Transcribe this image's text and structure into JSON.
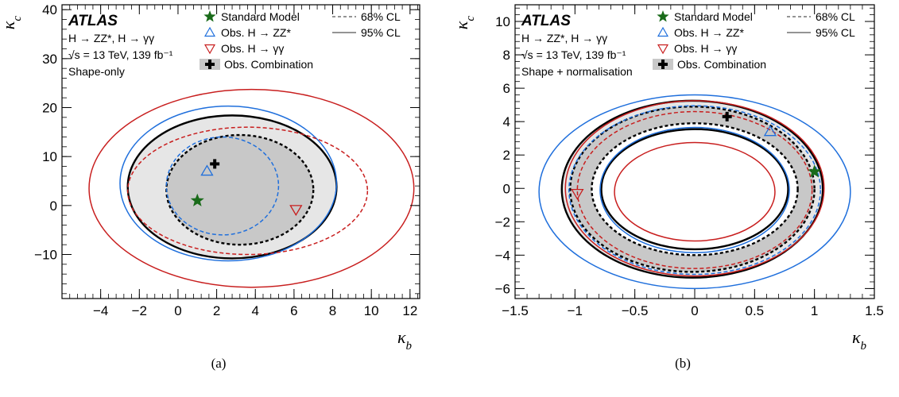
{
  "colors": {
    "combination": "#000000",
    "zz": "#1f6fdc",
    "gg": "#c81e1e",
    "sm": "#1a6b1a",
    "fill95": "#e6e6e6",
    "fill68": "#c8c8c8"
  },
  "chart_data": [
    {
      "type": "contour",
      "panel": "a",
      "caption": "(a)",
      "xlabel": "κ_b",
      "ylabel": "κ_c",
      "xlim": [
        -6,
        12.5
      ],
      "ylim": [
        -19,
        41
      ],
      "xticks": [
        -4,
        -2,
        0,
        2,
        4,
        6,
        8,
        10,
        12
      ],
      "xtick_labels": [
        "−4",
        "−2",
        "0",
        "2",
        "4",
        "6",
        "8",
        "10",
        "12"
      ],
      "yticks": [
        -10,
        0,
        10,
        20,
        30,
        40
      ],
      "ytick_labels": [
        "−10",
        "0",
        "10",
        "20",
        "30",
        "40"
      ],
      "atlas_label": "ATLAS",
      "info_lines": [
        "H → ZZ*, H → γγ",
        "√s = 13 TeV, 139 fb⁻¹",
        "Shape-only"
      ],
      "legend": {
        "sm": "Standard Model",
        "zz": "Obs. H → ZZ*",
        "gg": "Obs. H → γγ",
        "comb": "Obs. Combination",
        "cl68": "68% CL",
        "cl95": "95% CL"
      },
      "points": {
        "sm": [
          1.0,
          1.0
        ],
        "zz": [
          1.5,
          7.0
        ],
        "gg": [
          6.1,
          -0.8
        ],
        "comb": [
          1.9,
          8.5
        ]
      },
      "contours": [
        {
          "series": "comb",
          "cl": 95,
          "filled": true,
          "cx": 2.8,
          "cy": 3.8,
          "rx": 5.4,
          "ry": 14.6,
          "rot": 0.0
        },
        {
          "series": "comb",
          "cl": 68,
          "filled": true,
          "cx": 3.2,
          "cy": 3.2,
          "rx": 3.8,
          "ry": 11.2,
          "rot": 0.0
        },
        {
          "series": "zz",
          "cl": 95,
          "filled": false,
          "cx": 2.6,
          "cy": 4.5,
          "rx": 5.6,
          "ry": 15.8,
          "rot": 0.0
        },
        {
          "series": "zz",
          "cl": 68,
          "filled": false,
          "cx": 2.3,
          "cy": 4.0,
          "rx": 2.9,
          "ry": 10.0,
          "rot": 0.0
        },
        {
          "series": "gg",
          "cl": 95,
          "filled": false,
          "cx": 3.8,
          "cy": 3.5,
          "rx": 8.4,
          "ry": 20.2,
          "rot": 0.0
        },
        {
          "series": "gg",
          "cl": 68,
          "filled": false,
          "cx": 3.6,
          "cy": 3.0,
          "rx": 6.2,
          "ry": 13.0,
          "rot": 0.0
        }
      ]
    },
    {
      "type": "contour",
      "panel": "b",
      "caption": "(b)",
      "xlabel": "κ_b",
      "ylabel": "κ_c",
      "xlim": [
        -1.5,
        1.5
      ],
      "ylim": [
        -6.6,
        11.0
      ],
      "xticks": [
        -1.5,
        -1,
        -0.5,
        0,
        0.5,
        1,
        1.5
      ],
      "xtick_labels": [
        "−1.5",
        "−1",
        "−0.5",
        "0",
        "0.5",
        "1",
        "1.5"
      ],
      "yticks": [
        -6,
        -4,
        -2,
        0,
        2,
        4,
        6,
        8,
        10
      ],
      "ytick_labels": [
        "−6",
        "−4",
        "−2",
        "0",
        "2",
        "4",
        "6",
        "8",
        "10"
      ],
      "atlas_label": "ATLAS",
      "info_lines": [
        "H → ZZ*, H → γγ",
        "√s = 13 TeV, 139 fb⁻¹",
        "Shape + normalisation"
      ],
      "legend": {
        "sm": "Standard Model",
        "zz": "Obs. H → ZZ*",
        "gg": "Obs. H → γγ",
        "comb": "Obs. Combination",
        "cl68": "68% CL",
        "cl95": "95% CL"
      },
      "points": {
        "sm": [
          1.0,
          1.0
        ],
        "zz": [
          0.63,
          3.4
        ],
        "gg": [
          -0.98,
          -0.3
        ],
        "comb": [
          0.27,
          4.3
        ]
      },
      "contours": [
        {
          "series": "comb",
          "cl": 95,
          "filled": true,
          "cx": -0.02,
          "cy": -0.05,
          "rx": 1.09,
          "ry": 5.3,
          "rot": 0.0
        },
        {
          "series": "comb",
          "cl": 68,
          "filled": true,
          "cx": -0.02,
          "cy": -0.05,
          "rx": 1.02,
          "ry": 4.95,
          "rot": 0.0
        },
        {
          "series": "comb",
          "cl": 68,
          "filled": false,
          "whiteFill": true,
          "cx": 0.0,
          "cy": -0.05,
          "rx": 0.86,
          "ry": 3.95,
          "rot": 0.0
        },
        {
          "series": "comb",
          "cl": 95,
          "filled": false,
          "whiteFill": true,
          "cx": 0.0,
          "cy": -0.05,
          "rx": 0.78,
          "ry": 3.6,
          "rot": 0.0
        },
        {
          "series": "zz",
          "cl": 95,
          "filled": false,
          "cx": 0.0,
          "cy": -0.2,
          "rx": 1.3,
          "ry": 5.8,
          "rot": 0.0
        },
        {
          "series": "zz",
          "cl": 95,
          "filled": false,
          "cx": 0.0,
          "cy": -0.1,
          "rx": 0.79,
          "ry": 3.75,
          "rot": 0.0
        },
        {
          "series": "zz",
          "cl": 68,
          "filled": false,
          "cx": 0.0,
          "cy": -0.1,
          "rx": 1.05,
          "ry": 5.05,
          "rot": 0.0
        },
        {
          "series": "gg",
          "cl": 95,
          "filled": false,
          "cx": 0.0,
          "cy": 0.0,
          "rx": 1.08,
          "ry": 5.25,
          "rot": 0.0
        },
        {
          "series": "gg",
          "cl": 95,
          "filled": false,
          "cx": 0.0,
          "cy": -0.2,
          "rx": 0.67,
          "ry": 2.95,
          "rot": 0.0
        },
        {
          "series": "gg",
          "cl": 68,
          "filled": false,
          "cx": 0.0,
          "cy": -0.1,
          "rx": 0.98,
          "ry": 4.7,
          "rot": 0.0
        }
      ]
    }
  ]
}
